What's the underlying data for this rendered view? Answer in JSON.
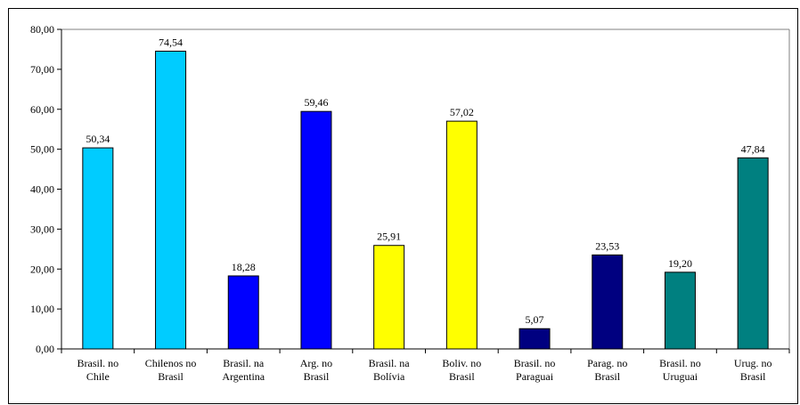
{
  "chart_data": {
    "type": "bar",
    "categories": [
      [
        "Brasil. no",
        "Chile"
      ],
      [
        "Chilenos no",
        "Brasil"
      ],
      [
        "Brasil. na",
        "Argentina"
      ],
      [
        "Arg. no",
        "Brasil"
      ],
      [
        "Brasil. na",
        "Bolívia"
      ],
      [
        "Boliv. no",
        "Brasil"
      ],
      [
        "Brasil. no",
        "Paraguai"
      ],
      [
        "Parag. no",
        "Brasil"
      ],
      [
        "Brasil. no",
        "Uruguai"
      ],
      [
        "Urug. no",
        "Brasil"
      ]
    ],
    "values": [
      50.34,
      74.54,
      18.28,
      59.46,
      25.91,
      57.02,
      5.07,
      23.53,
      19.2,
      47.84
    ],
    "value_labels": [
      "50,34",
      "74,54",
      "18,28",
      "59,46",
      "25,91",
      "57,02",
      "5,07",
      "23,53",
      "19,20",
      "47,84"
    ],
    "bar_colors": [
      "#00ccff",
      "#00ccff",
      "#0000ff",
      "#0000ff",
      "#ffff00",
      "#ffff00",
      "#000080",
      "#000080",
      "#008080",
      "#008080"
    ],
    "ylim": [
      0,
      80
    ],
    "yticks": [
      0,
      10,
      20,
      30,
      40,
      50,
      60,
      70,
      80
    ],
    "ytick_labels": [
      "0,00",
      "10,00",
      "20,00",
      "30,00",
      "40,00",
      "50,00",
      "60,00",
      "70,00",
      "80,00"
    ],
    "grid": false,
    "legend": false,
    "title": "",
    "xlabel": "",
    "ylabel": ""
  }
}
